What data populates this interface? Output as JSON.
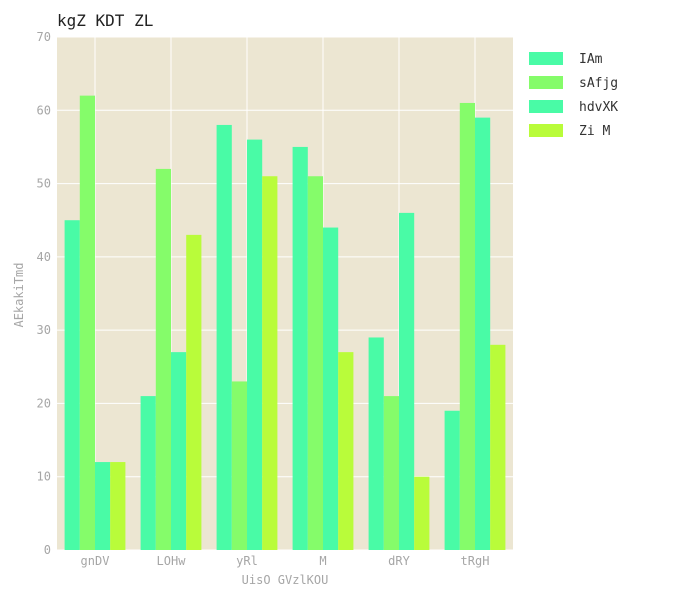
{
  "chart_data": {
    "type": "bar",
    "title": "kgZ KDT ZL",
    "xlabel": "UisO GVzlKOU",
    "ylabel": "AEkakiTmd",
    "categories": [
      "gnDV",
      "LOHw",
      "yRl",
      "M",
      "dRY",
      "tRgH"
    ],
    "ylim": [
      0,
      70
    ],
    "yticks": [
      0,
      10,
      20,
      30,
      40,
      50,
      60,
      70
    ],
    "grid": true,
    "legend_position": "right",
    "background_color": "#ece6d2",
    "series": [
      {
        "name": "IAm",
        "color": "#49fba6",
        "values": [
          45,
          21,
          58,
          55,
          29,
          19
        ]
      },
      {
        "name": "sAfjg",
        "color": "#85fc6a",
        "values": [
          62,
          52,
          23,
          51,
          21,
          61
        ]
      },
      {
        "name": "hdvXK",
        "color": "#49fba6",
        "values": [
          12,
          27,
          56,
          44,
          46,
          59
        ]
      },
      {
        "name": "Zi M",
        "color": "#b9fc3a",
        "values": [
          12,
          43,
          51,
          27,
          10,
          28
        ]
      }
    ]
  }
}
